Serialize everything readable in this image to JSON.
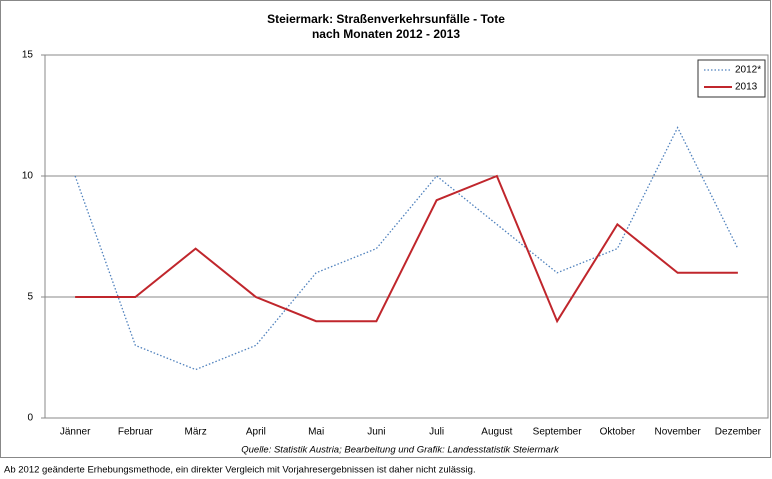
{
  "chart_data": {
    "type": "line",
    "title": "Steiermark: Straßenverkehrsunfälle - Tote",
    "subtitle": "nach Monaten 2012 - 2013",
    "categories": [
      "Jänner",
      "Februar",
      "März",
      "April",
      "Mai",
      "Juni",
      "Juli",
      "August",
      "September",
      "Oktober",
      "November",
      "Dezember"
    ],
    "series": [
      {
        "name": "2012*",
        "color": "#4f81bd",
        "dash": "dotted",
        "values": [
          10,
          3,
          2,
          3,
          6,
          7,
          10,
          8,
          6,
          7,
          12,
          7
        ]
      },
      {
        "name": "2013",
        "color": "#c0262c",
        "dash": "solid",
        "values": [
          5,
          5,
          7,
          5,
          4,
          4,
          9,
          10,
          4,
          8,
          6,
          6
        ]
      }
    ],
    "ylim": [
      0,
      15
    ],
    "yticks": [
      0,
      5,
      10,
      15
    ],
    "grid": true,
    "legend": "top-right",
    "source": "Quelle: Statistik Austria; Bearbeitung und Grafik: Landesstatistik Steiermark",
    "footnote": "Ab 2012 geänderte Erhebungsmethode, ein direkter Vergleich mit Vorjahresergebnissen ist daher nicht zulässig."
  }
}
